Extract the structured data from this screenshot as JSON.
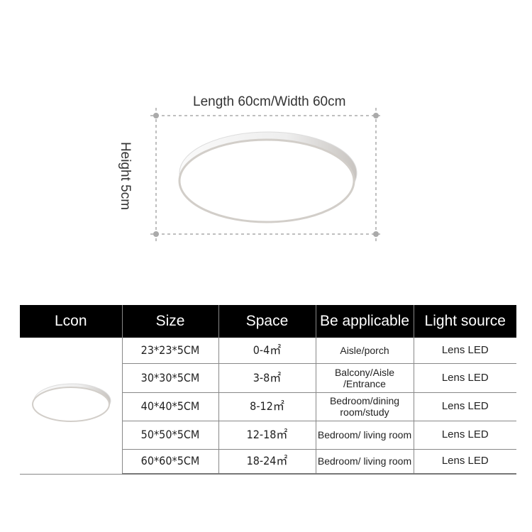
{
  "dimensions": {
    "length_width": "Length 60cm/Width 60cm",
    "height": "Height 5cm"
  },
  "table": {
    "headers": [
      "Lcon",
      "Size",
      "Space",
      "Be applicable",
      "Light source"
    ],
    "rows": [
      {
        "size": "23*23*5CM",
        "space": "0-4㎡",
        "applicable": "Aisle/porch",
        "light": "Lens LED"
      },
      {
        "size": "30*30*5CM",
        "space": "3-8㎡",
        "applicable": "Balcony/Aisle /Entrance",
        "light": "Lens LED"
      },
      {
        "size": "40*40*5CM",
        "space": "8-12㎡",
        "applicable": "Bedroom/dining room/study",
        "light": "Lens LED"
      },
      {
        "size": "50*50*5CM",
        "space": "12-18㎡",
        "applicable": "Bedroom/ living room",
        "light": "Lens LED"
      },
      {
        "size": "60*60*5CM",
        "space": "18-24㎡",
        "applicable": "Bedroom/ living room",
        "light": "Lens LED"
      }
    ]
  },
  "colors": {
    "header_bg": "#000000",
    "header_text": "#ffffff",
    "dim_line": "#aaaaaa"
  }
}
